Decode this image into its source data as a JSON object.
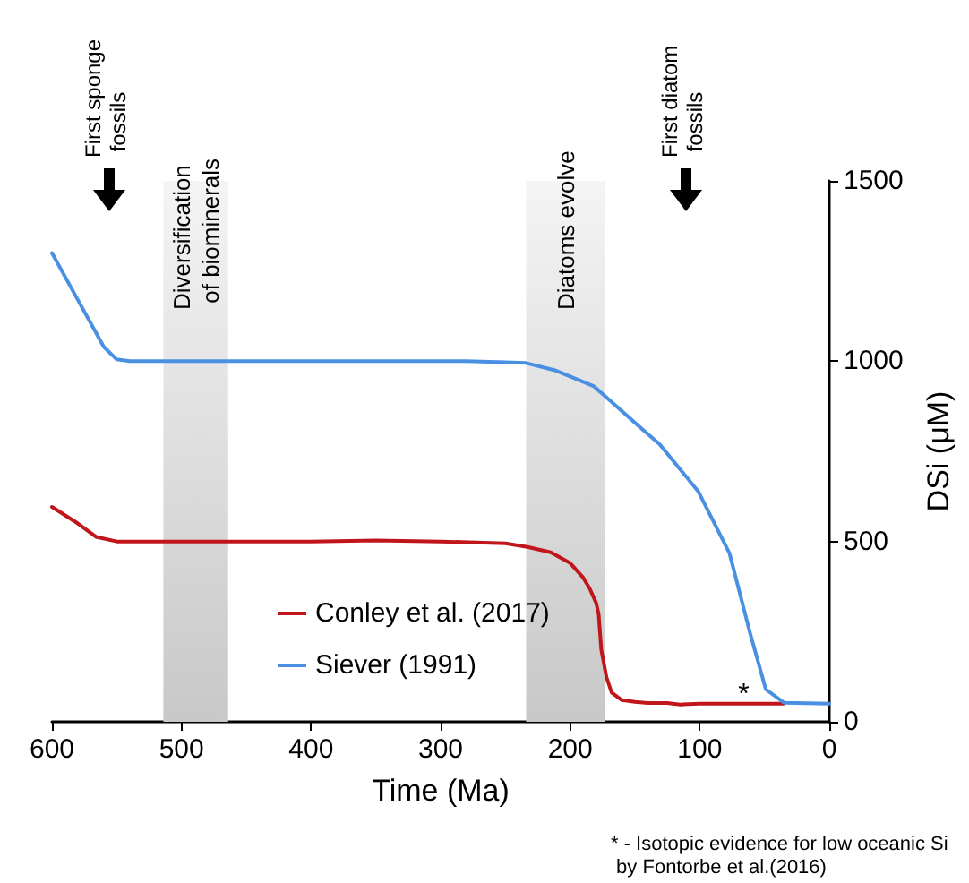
{
  "chart_data": {
    "type": "line",
    "xlabel": "Time (Ma)",
    "ylabel": "DSi (μM)",
    "xlim": [
      600,
      0
    ],
    "xticks": [
      600,
      500,
      400,
      300,
      200,
      100,
      0
    ],
    "ylim": [
      0,
      1500
    ],
    "yticks": [
      0,
      500,
      1000,
      1500
    ],
    "grid": false,
    "legend": "left",
    "marker": "none",
    "line_style": "solid",
    "series": [
      {
        "name": "Conley et al. (2017)",
        "color": "#c0161b",
        "x": [
          600,
          580,
          566,
          550,
          500,
          400,
          350,
          300,
          250,
          233,
          215,
          200,
          190,
          185,
          180,
          178,
          176,
          172,
          168,
          160,
          150,
          140,
          125,
          115,
          100,
          70,
          35
        ],
        "values": [
          596,
          550,
          513,
          500,
          500,
          500,
          503,
          500,
          495,
          485,
          470,
          440,
          400,
          370,
          330,
          298,
          200,
          124,
          81,
          60,
          55,
          52,
          52,
          48,
          50,
          50,
          50
        ]
      },
      {
        "name": "Siever (1991)",
        "color": "#4a90e2",
        "x": [
          600,
          580,
          560,
          550,
          540,
          400,
          300,
          280,
          250,
          234,
          211,
          182,
          163,
          144,
          131,
          101,
          77,
          61,
          49,
          35,
          0
        ],
        "values": [
          1300,
          1170,
          1040,
          1005,
          1000,
          1000,
          1000,
          1000,
          997,
          995,
          974,
          931,
          871,
          810,
          770,
          638,
          467,
          244,
          90,
          53,
          50
        ]
      }
    ],
    "bands": [
      {
        "axis": "x",
        "from": 514,
        "to": 464,
        "label": "Diversification of biominerals",
        "color": "#c8c8c8"
      },
      {
        "axis": "x",
        "from": 234,
        "to": 173,
        "label": "Diatoms evolve",
        "color": "#c8c8c8"
      }
    ],
    "annotations": [
      "First sponge fossils",
      "First diatom fossils",
      {
        "text": "*",
        "x": 66,
        "y": 75
      },
      "* - Isotopic evidence for low oceanic Si by Fontorbe et al.(2016)"
    ]
  }
}
